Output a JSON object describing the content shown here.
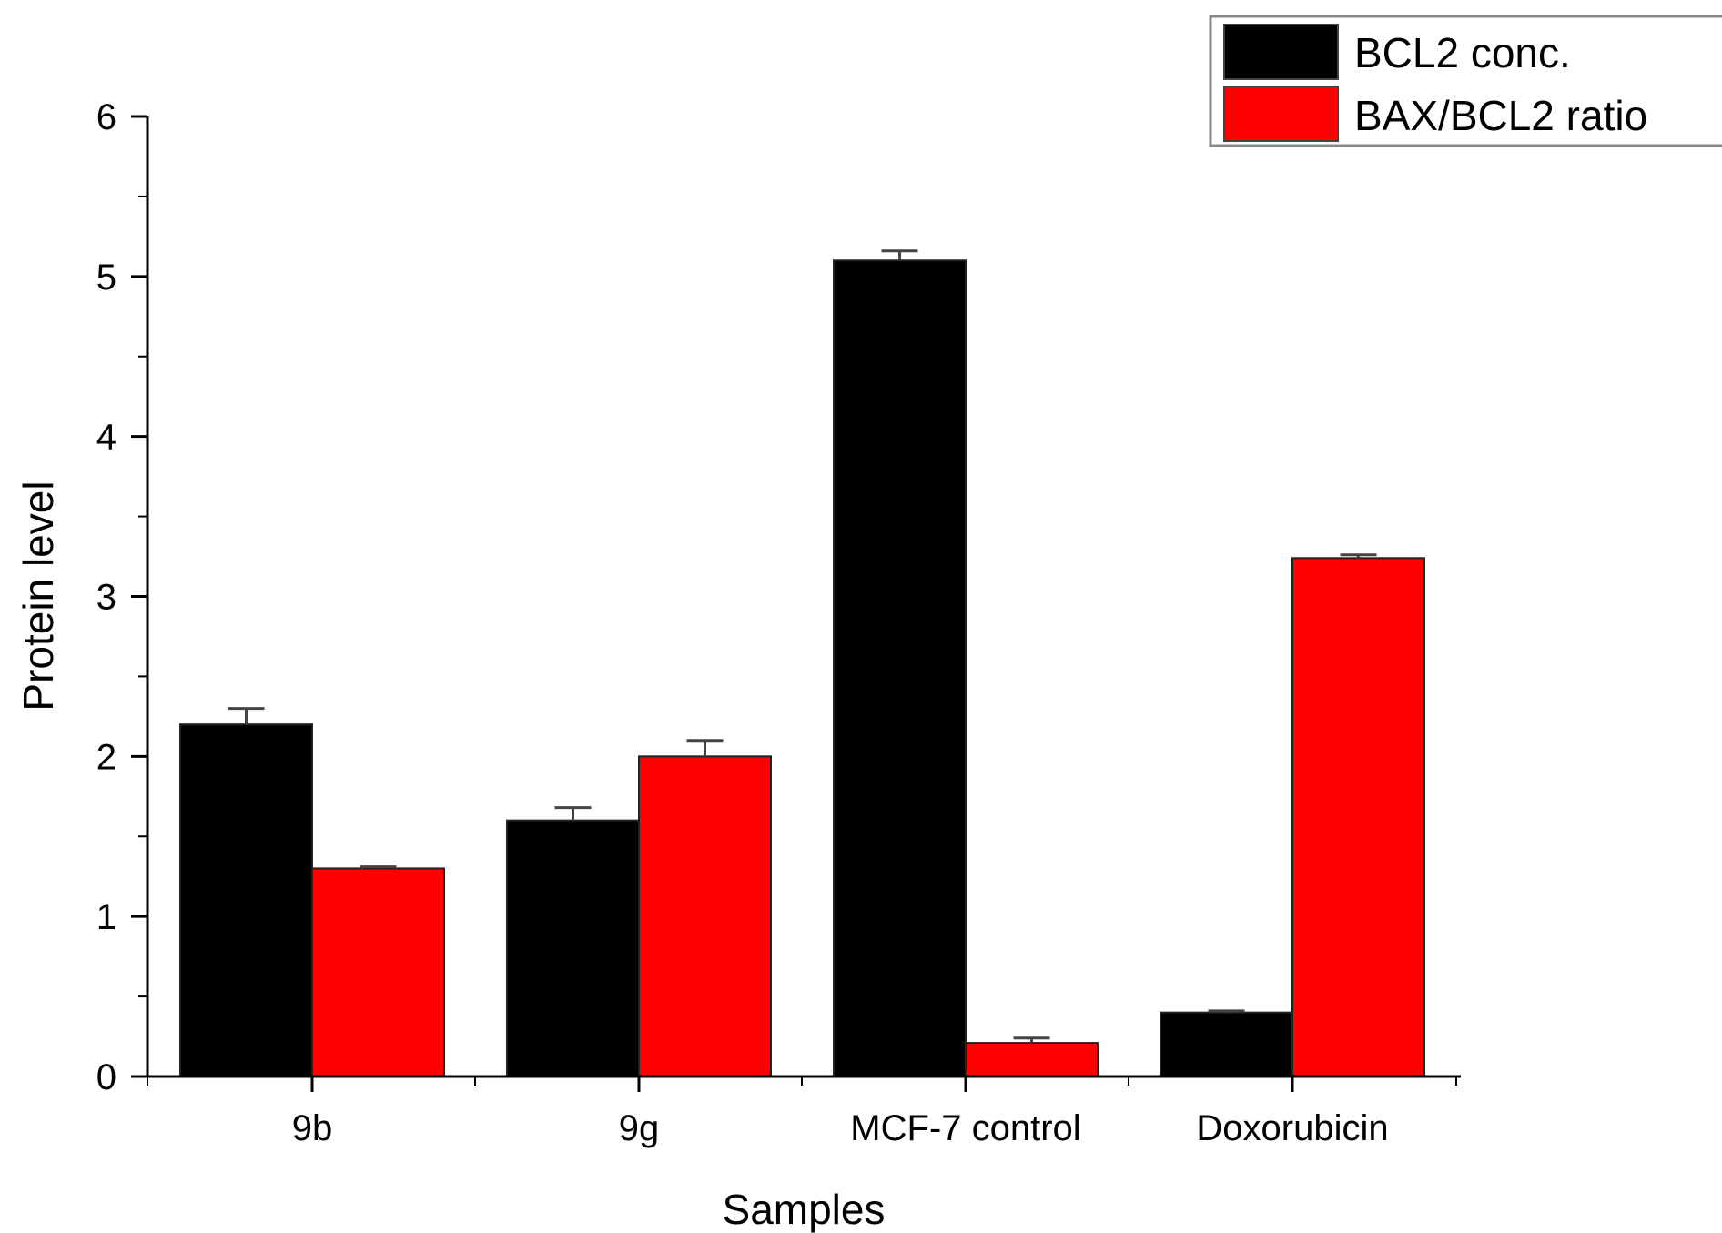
{
  "chart_data": {
    "type": "bar",
    "title": "",
    "xlabel": "Samples",
    "ylabel": "Protein level",
    "ylim": [
      0,
      6
    ],
    "yticks": [
      0,
      1,
      2,
      3,
      4,
      5,
      6
    ],
    "categories": [
      "9b",
      "9g",
      "MCF-7 control",
      "Doxorubicin"
    ],
    "series": [
      {
        "name": "BCL2 conc.",
        "color": "#000000",
        "values": [
          2.2,
          1.6,
          5.1,
          0.4
        ],
        "errors": [
          0.1,
          0.08,
          0.06,
          0.01
        ]
      },
      {
        "name": "BAX/BCL2 ratio",
        "color": "#ff0000",
        "values": [
          1.3,
          2.0,
          0.21,
          3.24
        ],
        "errors": [
          0.01,
          0.1,
          0.03,
          0.02
        ]
      }
    ],
    "legend_position": "top-right",
    "grid": false
  }
}
